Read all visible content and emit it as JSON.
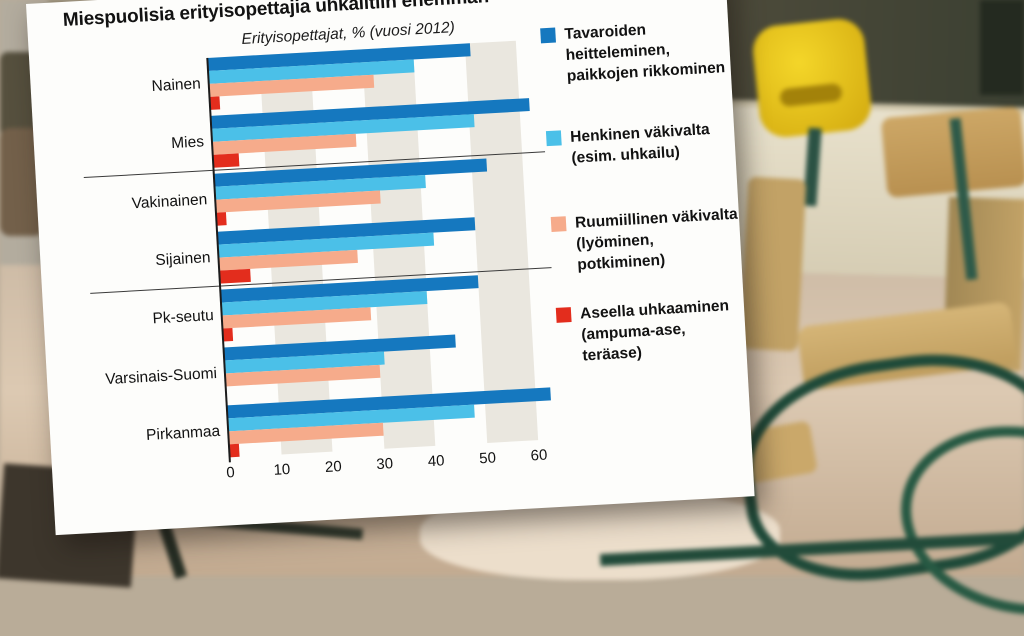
{
  "title": "Miespuolisia erityisopettajia uhkailtiin enemmän",
  "subtitle": "Erityisopettajat, % (vuosi 2012)",
  "chart_data": {
    "type": "bar",
    "orientation": "horizontal",
    "title": "Miespuolisia erityisopettajia uhkailtiin enemmän",
    "subtitle": "Erityisopettajat, % (vuosi 2012)",
    "categories": [
      "Nainen",
      "Mies",
      "Vakinainen",
      "Sijainen",
      "Pk-seutu",
      "Varsinais-Suomi",
      "Pirkanmaa"
    ],
    "series": [
      {
        "name": "Tavaroiden heitteleminen, paikkojen rikkominen",
        "color": "#1578bf",
        "values": [
          51,
          62,
          53,
          50,
          50,
          45,
          63
        ]
      },
      {
        "name": "Henkinen väkivalta (esim. uhkailu)",
        "color": "#4bc0e8",
        "values": [
          40,
          51,
          41,
          42,
          40,
          31,
          48
        ]
      },
      {
        "name": "Ruumiillinen väkivalta (lyöminen, potkiminen)",
        "color": "#f6ab8b",
        "values": [
          32,
          28,
          32,
          27,
          29,
          30,
          30
        ]
      },
      {
        "name": "Aseella uhkaaminen (ampuma-ase, teräase)",
        "color": "#e32d1d",
        "values": [
          2,
          5,
          2,
          6,
          2,
          0,
          2
        ]
      }
    ],
    "xlim": [
      0,
      60
    ],
    "xtick_labels": [
      "0",
      "10",
      "20",
      "30",
      "40",
      "50",
      "60"
    ],
    "grid_bands": [
      [
        10,
        20
      ],
      [
        30,
        40
      ],
      [
        50,
        60
      ]
    ],
    "separators_after": [
      "Mies",
      "Sijainen"
    ],
    "legend_position": "right",
    "background": "blurred classroom photo with wooden chairs, green metal chair legs, yellow chair and chalkboard"
  },
  "style": {
    "band_color": "#eae7df",
    "axis_color": "#1c1c1c",
    "separator_color": "#3a3a3a",
    "panel_background": "#fdfdfb",
    "text_color": "#121212"
  }
}
